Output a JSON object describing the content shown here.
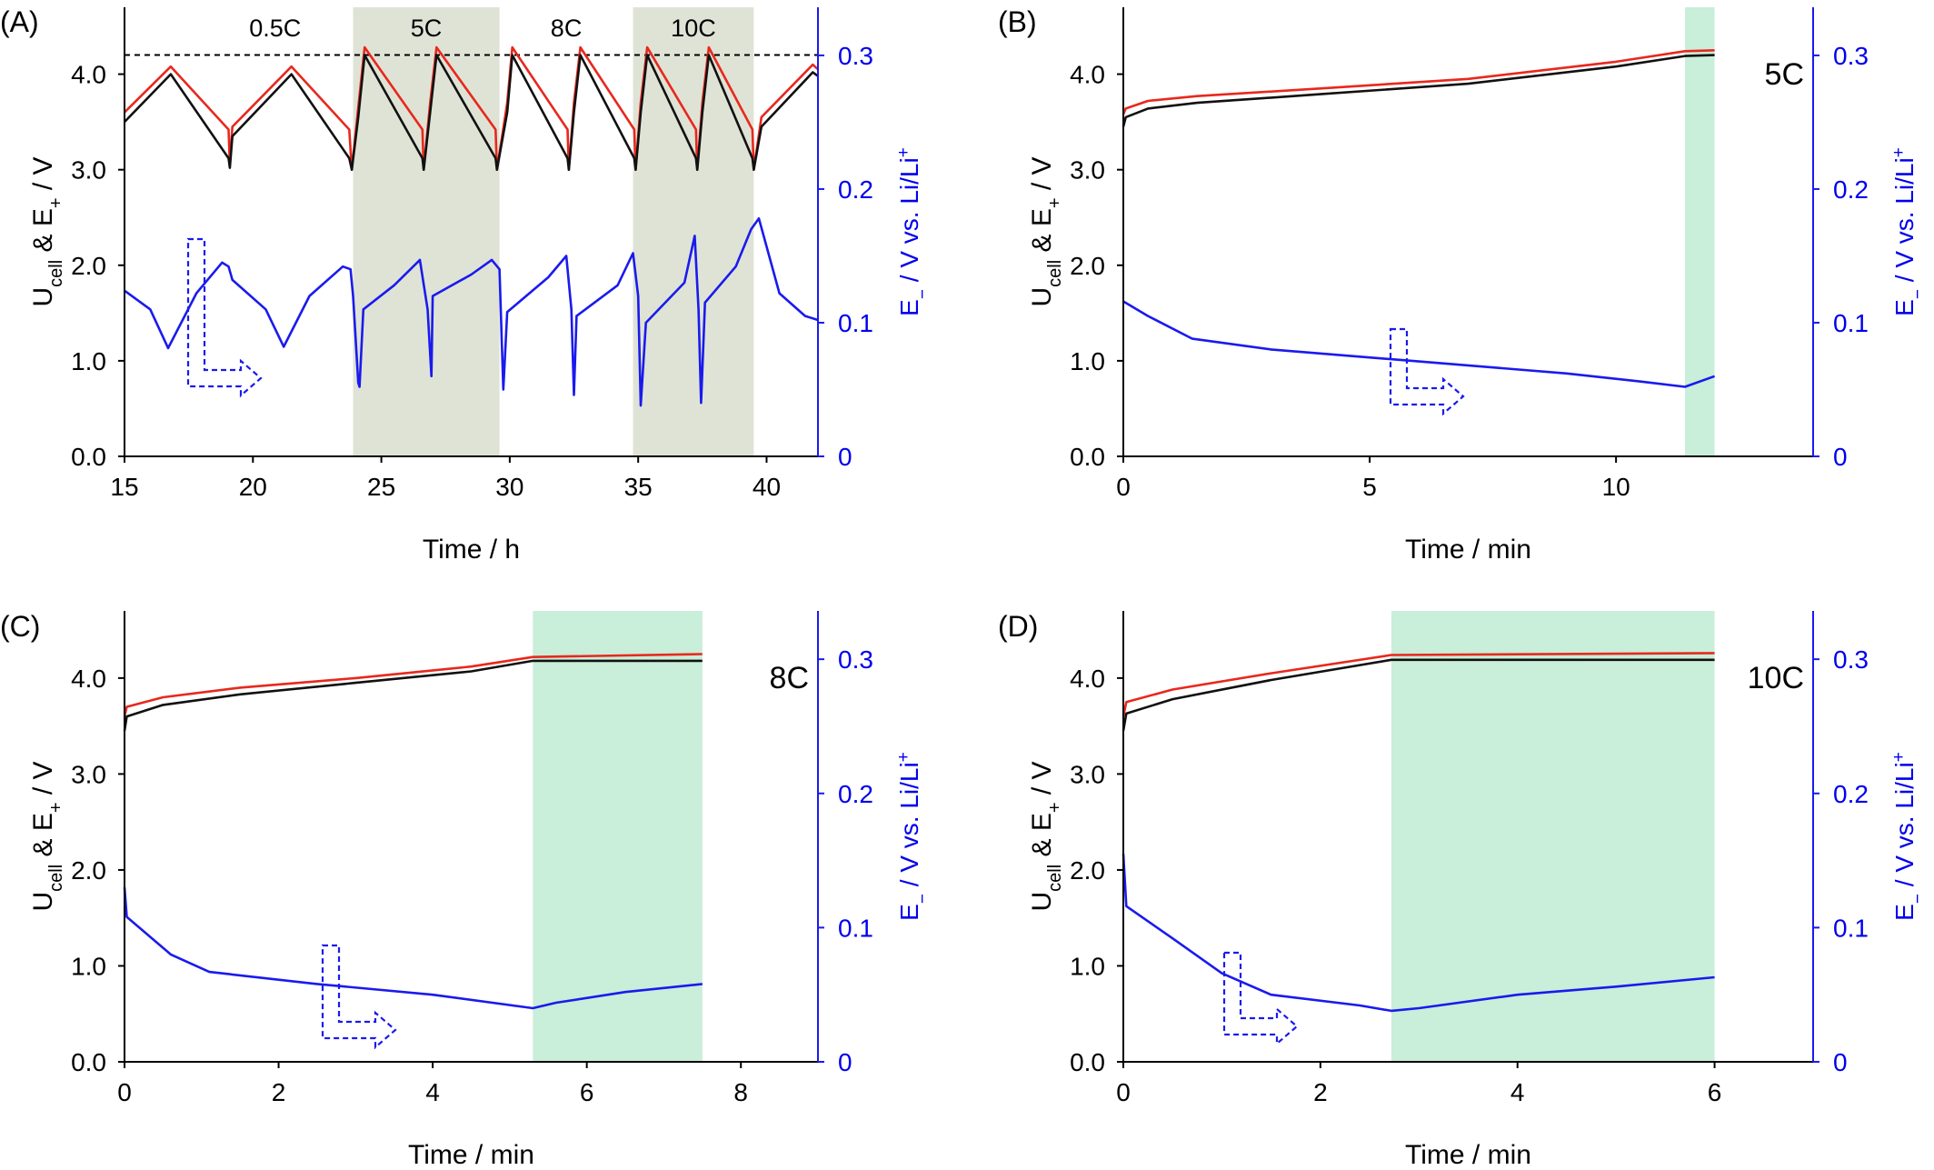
{
  "chart_data": [
    {
      "panel": "(A)",
      "type": "line",
      "xlabel": "Time / h",
      "ylabel_left": [
        "U",
        "cell",
        " & E",
        "+",
        " / V"
      ],
      "ylabel_right": [
        "E",
        "−",
        " / V vs. Li/Li",
        "+"
      ],
      "xlim": [
        15,
        42
      ],
      "ylim_left": [
        0,
        4.7
      ],
      "ylim_right": [
        0,
        0.336
      ],
      "xticks": [
        15,
        20,
        25,
        30,
        35,
        40
      ],
      "yticks_left": [
        "0.0",
        "1.0",
        "2.0",
        "3.0",
        "4.0"
      ],
      "yticks_right": [
        "0",
        "0.1",
        "0.2",
        "0.3"
      ],
      "reference_line": 4.2,
      "regions": [
        {
          "label": "0.5C",
          "x0": 15,
          "x1": 23.9,
          "shaded": false
        },
        {
          "label": "5C",
          "x0": 23.9,
          "x1": 29.6,
          "shaded": true
        },
        {
          "label": "8C",
          "x0": 29.6,
          "x1": 34.8,
          "shaded": false
        },
        {
          "label": "10C",
          "x0": 34.8,
          "x1": 39.5,
          "shaded": true
        }
      ],
      "series": [
        {
          "axis": "left",
          "color": "#e8281e",
          "points": [
            [
              15,
              3.6
            ],
            [
              16.8,
              4.08
            ],
            [
              19.05,
              3.42
            ],
            [
              19.1,
              3.05
            ],
            [
              19.2,
              3.45
            ],
            [
              21.5,
              4.08
            ],
            [
              23.75,
              3.42
            ],
            [
              23.85,
              3.0
            ],
            [
              24.1,
              3.65
            ],
            [
              24.35,
              4.28
            ],
            [
              26.6,
              3.42
            ],
            [
              26.65,
              3.0
            ],
            [
              26.9,
              3.7
            ],
            [
              27.15,
              4.28
            ],
            [
              29.45,
              3.42
            ],
            [
              29.5,
              3.0
            ],
            [
              29.9,
              3.7
            ],
            [
              30.1,
              4.28
            ],
            [
              32.25,
              3.42
            ],
            [
              32.3,
              3.0
            ],
            [
              32.5,
              3.7
            ],
            [
              32.75,
              4.28
            ],
            [
              34.85,
              3.42
            ],
            [
              34.9,
              3.0
            ],
            [
              35.1,
              3.7
            ],
            [
              35.35,
              4.28
            ],
            [
              37.25,
              3.42
            ],
            [
              37.3,
              3.0
            ],
            [
              37.5,
              3.7
            ],
            [
              37.75,
              4.28
            ],
            [
              39.45,
              3.42
            ],
            [
              39.5,
              3.0
            ],
            [
              39.8,
              3.55
            ],
            [
              41.8,
              4.1
            ],
            [
              42,
              4.05
            ]
          ]
        },
        {
          "axis": "left",
          "color": "#111111",
          "points": [
            [
              15,
              3.5
            ],
            [
              16.8,
              4.0
            ],
            [
              19.05,
              3.12
            ],
            [
              19.1,
              3.02
            ],
            [
              19.2,
              3.35
            ],
            [
              21.5,
              4.0
            ],
            [
              23.75,
              3.12
            ],
            [
              23.85,
              3.0
            ],
            [
              24.1,
              3.55
            ],
            [
              24.35,
              4.2
            ],
            [
              26.6,
              3.12
            ],
            [
              26.65,
              3.0
            ],
            [
              26.9,
              3.6
            ],
            [
              27.15,
              4.2
            ],
            [
              29.45,
              3.12
            ],
            [
              29.5,
              3.0
            ],
            [
              29.9,
              3.6
            ],
            [
              30.1,
              4.2
            ],
            [
              32.25,
              3.12
            ],
            [
              32.3,
              3.0
            ],
            [
              32.5,
              3.6
            ],
            [
              32.75,
              4.2
            ],
            [
              34.85,
              3.12
            ],
            [
              34.9,
              3.0
            ],
            [
              35.1,
              3.6
            ],
            [
              35.35,
              4.2
            ],
            [
              37.25,
              3.12
            ],
            [
              37.3,
              3.0
            ],
            [
              37.5,
              3.6
            ],
            [
              37.75,
              4.2
            ],
            [
              39.45,
              3.12
            ],
            [
              39.5,
              3.0
            ],
            [
              39.8,
              3.45
            ],
            [
              41.8,
              4.02
            ],
            [
              42,
              3.98
            ]
          ]
        },
        {
          "axis": "right",
          "color": "#1a1aee",
          "points": [
            [
              15,
              0.124
            ],
            [
              16,
              0.11
            ],
            [
              16.7,
              0.081
            ],
            [
              17.8,
              0.122
            ],
            [
              18.8,
              0.145
            ],
            [
              19.05,
              0.142
            ],
            [
              19.2,
              0.132
            ],
            [
              20.5,
              0.11
            ],
            [
              21.2,
              0.082
            ],
            [
              22.2,
              0.12
            ],
            [
              23.5,
              0.142
            ],
            [
              23.8,
              0.14
            ],
            [
              23.9,
              0.12
            ],
            [
              24.1,
              0.055
            ],
            [
              24.15,
              0.052
            ],
            [
              24.3,
              0.11
            ],
            [
              25.5,
              0.128
            ],
            [
              26.5,
              0.147
            ],
            [
              26.8,
              0.11
            ],
            [
              26.95,
              0.06
            ],
            [
              27.0,
              0.12
            ],
            [
              28.5,
              0.136
            ],
            [
              29.3,
              0.147
            ],
            [
              29.6,
              0.14
            ],
            [
              29.75,
              0.05
            ],
            [
              29.9,
              0.108
            ],
            [
              31.5,
              0.134
            ],
            [
              32.2,
              0.15
            ],
            [
              32.4,
              0.11
            ],
            [
              32.5,
              0.046
            ],
            [
              32.6,
              0.105
            ],
            [
              34.2,
              0.128
            ],
            [
              34.8,
              0.152
            ],
            [
              35.0,
              0.12
            ],
            [
              35.1,
              0.038
            ],
            [
              35.3,
              0.1
            ],
            [
              36.8,
              0.13
            ],
            [
              37.2,
              0.165
            ],
            [
              37.35,
              0.11
            ],
            [
              37.45,
              0.04
            ],
            [
              37.6,
              0.115
            ],
            [
              38.8,
              0.142
            ],
            [
              39.4,
              0.17
            ],
            [
              39.7,
              0.178
            ],
            [
              40.5,
              0.122
            ],
            [
              41.5,
              0.105
            ],
            [
              42,
              0.102
            ]
          ]
        }
      ]
    },
    {
      "panel": "(B)",
      "type": "line",
      "xlabel": "Time / min",
      "ylabel_left": [
        "U",
        "cell",
        " & E",
        "+",
        " / V"
      ],
      "ylabel_right": [
        "E",
        "−",
        " / V vs. Li/Li",
        "+"
      ],
      "xlim": [
        0,
        14
      ],
      "ylim_left": [
        0,
        4.7
      ],
      "ylim_right": [
        0,
        0.336
      ],
      "xticks": [
        0,
        5,
        10
      ],
      "yticks_left": [
        "0.0",
        "1.0",
        "2.0",
        "3.0",
        "4.0"
      ],
      "yticks_right": [
        "0",
        "0.1",
        "0.2",
        "0.3"
      ],
      "rate_label": "5C",
      "shaded_x": [
        11.4,
        12.0
      ],
      "series": [
        {
          "axis": "left",
          "color": "#e8281e",
          "points": [
            [
              0,
              3.58
            ],
            [
              0.05,
              3.64
            ],
            [
              0.5,
              3.72
            ],
            [
              1.5,
              3.77
            ],
            [
              4,
              3.85
            ],
            [
              7,
              3.95
            ],
            [
              10,
              4.13
            ],
            [
              11.4,
              4.24
            ],
            [
              12,
              4.25
            ]
          ]
        },
        {
          "axis": "left",
          "color": "#111111",
          "points": [
            [
              0,
              3.45
            ],
            [
              0.05,
              3.55
            ],
            [
              0.5,
              3.64
            ],
            [
              1.5,
              3.7
            ],
            [
              4,
              3.79
            ],
            [
              7,
              3.9
            ],
            [
              10,
              4.08
            ],
            [
              11.4,
              4.19
            ],
            [
              12,
              4.2
            ]
          ]
        },
        {
          "axis": "right",
          "color": "#1a1aee",
          "points": [
            [
              0,
              0.116
            ],
            [
              0.5,
              0.105
            ],
            [
              1.4,
              0.088
            ],
            [
              3,
              0.08
            ],
            [
              6,
              0.071
            ],
            [
              9,
              0.062
            ],
            [
              10.5,
              0.056
            ],
            [
              11.4,
              0.052
            ],
            [
              12,
              0.06
            ]
          ]
        }
      ]
    },
    {
      "panel": "(C)",
      "type": "line",
      "xlabel": "Time / min",
      "ylabel_left": [
        "U",
        "cell",
        " & E",
        "+",
        " / V"
      ],
      "ylabel_right": [
        "E",
        "−",
        " / V vs. Li/Li",
        "+"
      ],
      "xlim": [
        0,
        9
      ],
      "ylim_left": [
        0,
        4.7
      ],
      "ylim_right": [
        0,
        0.336
      ],
      "xticks": [
        0,
        2,
        4,
        6,
        8
      ],
      "yticks_left": [
        "0.0",
        "1.0",
        "2.0",
        "3.0",
        "4.0"
      ],
      "yticks_right": [
        "0",
        "0.1",
        "0.2",
        "0.3"
      ],
      "rate_label": "8C",
      "shaded_x": [
        5.3,
        7.5
      ],
      "series": [
        {
          "axis": "left",
          "color": "#e8281e",
          "points": [
            [
              0,
              3.6
            ],
            [
              0.03,
              3.7
            ],
            [
              0.5,
              3.8
            ],
            [
              1.5,
              3.9
            ],
            [
              3,
              4.0
            ],
            [
              4.5,
              4.12
            ],
            [
              5.3,
              4.22
            ],
            [
              7.5,
              4.25
            ]
          ]
        },
        {
          "axis": "left",
          "color": "#111111",
          "points": [
            [
              0,
              3.45
            ],
            [
              0.03,
              3.6
            ],
            [
              0.5,
              3.72
            ],
            [
              1.5,
              3.83
            ],
            [
              3,
              3.95
            ],
            [
              4.5,
              4.07
            ],
            [
              5.3,
              4.18
            ],
            [
              7.5,
              4.18
            ]
          ]
        },
        {
          "axis": "right",
          "color": "#1a1aee",
          "points": [
            [
              0,
              0.13
            ],
            [
              0.03,
              0.108
            ],
            [
              0.6,
              0.08
            ],
            [
              1.1,
              0.067
            ],
            [
              2.5,
              0.058
            ],
            [
              4,
              0.05
            ],
            [
              5.3,
              0.04
            ],
            [
              5.6,
              0.044
            ],
            [
              6.5,
              0.052
            ],
            [
              7.5,
              0.058
            ]
          ]
        }
      ]
    },
    {
      "panel": "(D)",
      "type": "line",
      "xlabel": "Time / min",
      "ylabel_left": [
        "U",
        "cell",
        " & E",
        "+",
        " / V"
      ],
      "ylabel_right": [
        "E",
        "−",
        " / V vs. Li/Li",
        "+"
      ],
      "xlim": [
        0,
        7
      ],
      "ylim_left": [
        0,
        4.7
      ],
      "ylim_right": [
        0,
        0.336
      ],
      "xticks": [
        0,
        2,
        4,
        6
      ],
      "yticks_left": [
        "0.0",
        "1.0",
        "2.0",
        "3.0",
        "4.0"
      ],
      "yticks_right": [
        "0",
        "0.1",
        "0.2",
        "0.3"
      ],
      "rate_label": "10C",
      "shaded_x": [
        2.72,
        6.0
      ],
      "series": [
        {
          "axis": "left",
          "color": "#e8281e",
          "points": [
            [
              0,
              3.6
            ],
            [
              0.03,
              3.75
            ],
            [
              0.5,
              3.88
            ],
            [
              1.5,
              4.05
            ],
            [
              2.72,
              4.24
            ],
            [
              6,
              4.26
            ]
          ]
        },
        {
          "axis": "left",
          "color": "#111111",
          "points": [
            [
              0,
              3.45
            ],
            [
              0.03,
              3.63
            ],
            [
              0.5,
              3.78
            ],
            [
              1.5,
              3.98
            ],
            [
              2.72,
              4.19
            ],
            [
              6,
              4.19
            ]
          ]
        },
        {
          "axis": "right",
          "color": "#1a1aee",
          "points": [
            [
              0,
              0.155
            ],
            [
              0.03,
              0.116
            ],
            [
              0.5,
              0.092
            ],
            [
              1,
              0.066
            ],
            [
              1.5,
              0.05
            ],
            [
              2.4,
              0.042
            ],
            [
              2.72,
              0.038
            ],
            [
              3,
              0.04
            ],
            [
              4,
              0.05
            ],
            [
              5,
              0.056
            ],
            [
              6,
              0.063
            ]
          ]
        }
      ]
    }
  ]
}
